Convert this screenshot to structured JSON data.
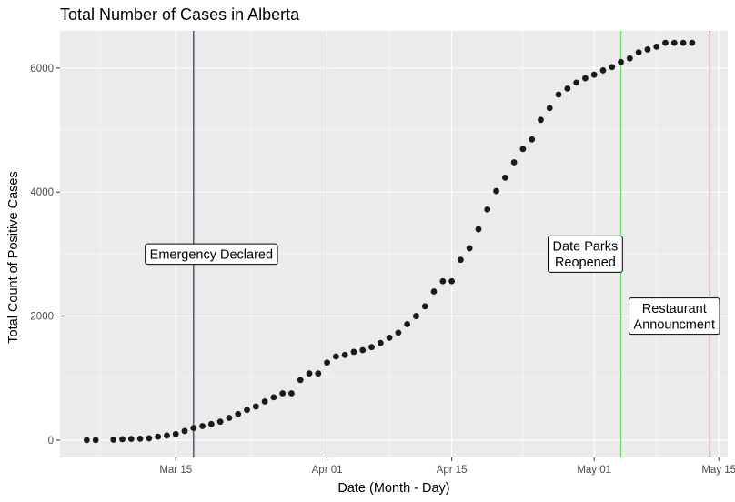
{
  "chart_data": {
    "type": "scatter",
    "title": "Total Number of Cases in Alberta",
    "xlabel": "Date (Month - Day)",
    "ylabel": "Total Count of Positive Cases",
    "x_ticks": [
      "Mar 15",
      "Apr 01",
      "Apr 15",
      "May 01",
      "May 15"
    ],
    "y_ticks": [
      0,
      2000,
      4000,
      6000
    ],
    "xlim": [
      "2020-03-02",
      "2020-05-16"
    ],
    "ylim": [
      -280,
      6600
    ],
    "grid": true,
    "point_color": "#1a1a1a",
    "panel_color": "#ebebeb",
    "x": [
      "2020-03-05",
      "2020-03-06",
      "2020-03-08",
      "2020-03-09",
      "2020-03-10",
      "2020-03-11",
      "2020-03-12",
      "2020-03-13",
      "2020-03-14",
      "2020-03-15",
      "2020-03-16",
      "2020-03-17",
      "2020-03-18",
      "2020-03-19",
      "2020-03-20",
      "2020-03-21",
      "2020-03-22",
      "2020-03-23",
      "2020-03-24",
      "2020-03-25",
      "2020-03-26",
      "2020-03-27",
      "2020-03-28",
      "2020-03-29",
      "2020-03-30",
      "2020-03-31",
      "2020-04-01",
      "2020-04-02",
      "2020-04-03",
      "2020-04-04",
      "2020-04-05",
      "2020-04-06",
      "2020-04-07",
      "2020-04-08",
      "2020-04-09",
      "2020-04-10",
      "2020-04-11",
      "2020-04-12",
      "2020-04-13",
      "2020-04-14",
      "2020-04-15",
      "2020-04-16",
      "2020-04-17",
      "2020-04-18",
      "2020-04-19",
      "2020-04-20",
      "2020-04-21",
      "2020-04-22",
      "2020-04-23",
      "2020-04-24",
      "2020-04-25",
      "2020-04-26",
      "2020-04-27",
      "2020-04-28",
      "2020-04-29",
      "2020-04-30",
      "2020-05-01",
      "2020-05-02",
      "2020-05-03",
      "2020-05-04",
      "2020-05-05",
      "2020-05-06",
      "2020-05-07",
      "2020-05-08",
      "2020-05-09",
      "2020-05-10",
      "2020-05-11",
      "2020-05-12"
    ],
    "y": [
      1,
      1,
      7,
      14,
      19,
      23,
      29,
      56,
      74,
      97,
      146,
      195,
      226,
      259,
      297,
      358,
      420,
      486,
      542,
      622,
      690,
      754,
      754,
      969,
      1075,
      1075,
      1250,
      1348,
      1373,
      1423,
      1451,
      1500,
      1567,
      1651,
      1732,
      1870,
      2000,
      2158,
      2397,
      2562,
      2562,
      2908,
      3095,
      3401,
      3720,
      4017,
      4233,
      4480,
      4696,
      4850,
      5165,
      5355,
      5573,
      5670,
      5766,
      5836,
      5893,
      5963,
      6017,
      6098,
      6157,
      6253,
      6300,
      6345,
      6407,
      6407,
      6407,
      6407
    ],
    "reference_lines": [
      {
        "date": "2020-03-17",
        "color": "#3b3f5c"
      },
      {
        "date": "2020-05-04",
        "color": "#66e066"
      },
      {
        "date": "2020-05-14",
        "color": "#8c6a6e"
      }
    ],
    "annotations": [
      {
        "lines": [
          "Emergency Declared"
        ],
        "date": "2020-03-19",
        "value": 3000
      },
      {
        "lines": [
          "Date Parks",
          "Reopened"
        ],
        "date": "2020-04-30",
        "value": 3000
      },
      {
        "lines": [
          "Restaurant",
          "Announcment"
        ],
        "date": "2020-05-10",
        "value": 2000
      }
    ]
  }
}
